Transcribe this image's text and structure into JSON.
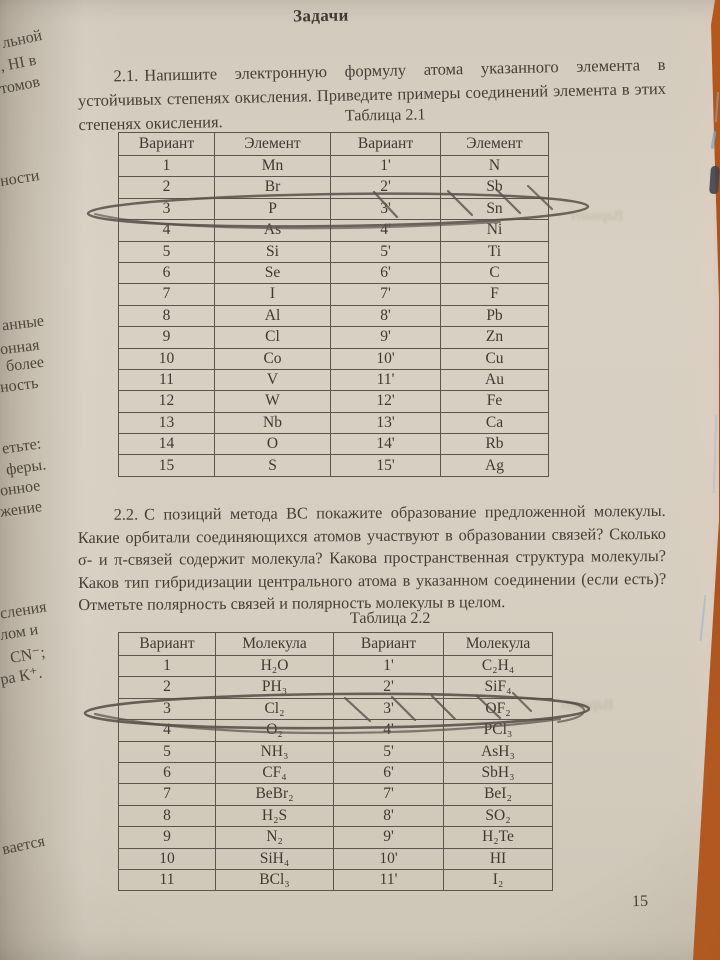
{
  "page": {
    "header": "Задачи",
    "page_number": "15",
    "desk_color": "#aa5019",
    "paper_color": "#d6cec0",
    "ink_color": "#443e37",
    "pen_color": "#57504a"
  },
  "left_margin_fragments": [
    "льной",
    ", HI в",
    "томов",
    "ности",
    "анные",
    "онная",
    "более",
    "ность",
    "етьте:",
    "феры.",
    "онное",
    "жение",
    "сления",
    "лом и",
    "CN⁻;",
    "ра К⁺.",
    "вается"
  ],
  "bleedthrough_words": [
    "Вариант",
    "Вариант"
  ],
  "task_2_1": {
    "number": "2.1.",
    "text": "Напишите электронную формулу атома указанного элемента в устойчивых степенях окисления. Приведите примеры соединений элемента в этих степенях окисления.",
    "table_caption": "Таблица 2.1",
    "table": {
      "headers": [
        "Вариант",
        "Элемент",
        "Вариант",
        "Элемент"
      ],
      "rows": [
        [
          "1",
          "Mn",
          "1'",
          "N"
        ],
        [
          "2",
          "Br",
          "2'",
          "Sb"
        ],
        [
          "3",
          "P",
          "3'",
          "Sn"
        ],
        [
          "4",
          "As",
          "4'",
          "Ni"
        ],
        [
          "5",
          "Si",
          "5'",
          "Ti"
        ],
        [
          "6",
          "Se",
          "6'",
          "C"
        ],
        [
          "7",
          "I",
          "7'",
          "F"
        ],
        [
          "8",
          "Al",
          "8'",
          "Pb"
        ],
        [
          "9",
          "Cl",
          "9'",
          "Zn"
        ],
        [
          "10",
          "Co",
          "10'",
          "Cu"
        ],
        [
          "11",
          "V",
          "11'",
          "Au"
        ],
        [
          "12",
          "W",
          "12'",
          "Fe"
        ],
        [
          "13",
          "Nb",
          "13'",
          "Ca"
        ],
        [
          "14",
          "O",
          "14'",
          "Rb"
        ],
        [
          "15",
          "S",
          "15'",
          "Ag"
        ]
      ],
      "pen_annotation": "row 3 circled, variant 3' and Sn struck through"
    }
  },
  "task_2_2": {
    "number": "2.2.",
    "text": "С позиций метода ВС покажите образование предложенной молекулы. Какие орбитали соединяющихся атомов участвуют в образовании связей? Сколько σ- и π-связей содержит молекула? Какова пространственная структура молекулы?  Каков тип гибридизации центрального атома в указанном соединении (если есть)? Отметьте полярность связей и полярность молекулы в целом.",
    "table_caption": "Таблица 2.2",
    "table": {
      "headers": [
        "Вариант",
        "Молекула",
        "Вариант",
        "Молекула"
      ],
      "rows": [
        [
          "1",
          "H₂O",
          "1'",
          "C₂H₄"
        ],
        [
          "2",
          "PH₃",
          "2'",
          "SiF₄"
        ],
        [
          "3",
          "Cl₂",
          "3'",
          "OF₂"
        ],
        [
          "4",
          "O₂",
          "4'",
          "PCl₃"
        ],
        [
          "5",
          "NH₃",
          "5'",
          "AsH₃"
        ],
        [
          "6",
          "CF₄",
          "6'",
          "SbH₃"
        ],
        [
          "7",
          "BeBr₂",
          "7'",
          "BeI₂"
        ],
        [
          "8",
          "H₂S",
          "8'",
          "SO₂"
        ],
        [
          "9",
          "N₂",
          "9'",
          "H₂Te"
        ],
        [
          "10",
          "SiH₄",
          "10'",
          "HI"
        ],
        [
          "11",
          "BCl₃",
          "11'",
          "I₂"
        ]
      ],
      "pen_annotation": "row 3 circled, variant 3' and OF₂ struck through"
    }
  }
}
